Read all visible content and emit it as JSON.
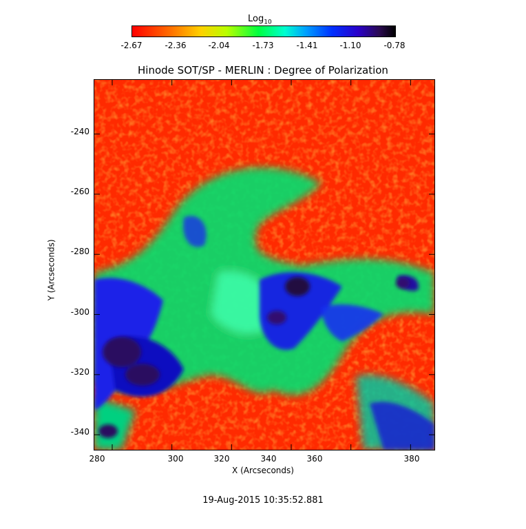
{
  "colorbar": {
    "title_base": "Log",
    "title_sub": "10",
    "ticks": [
      "-2.67",
      "-2.36",
      "-2.04",
      "-1.73",
      "-1.41",
      "-1.10",
      "-0.78"
    ]
  },
  "title": "Hinode SOT/SP - MERLIN : Degree of Polarization",
  "xaxis": {
    "label": "X (Arcseconds)",
    "ticks": [
      "280",
      "300",
      "320",
      "340",
      "360",
      "380"
    ],
    "range": [
      274,
      388
    ]
  },
  "yaxis": {
    "label": "Y (Arcseconds)",
    "ticks": [
      "-240",
      "-260",
      "-280",
      "-300",
      "-320",
      "-340"
    ],
    "range": [
      -345,
      -222
    ]
  },
  "timestamp": "19-Aug-2015 10:35:52.881",
  "colors": {
    "low": "#ff2a00",
    "mid": "#00ff60",
    "high": "#1000c0",
    "peak": "#200040"
  }
}
